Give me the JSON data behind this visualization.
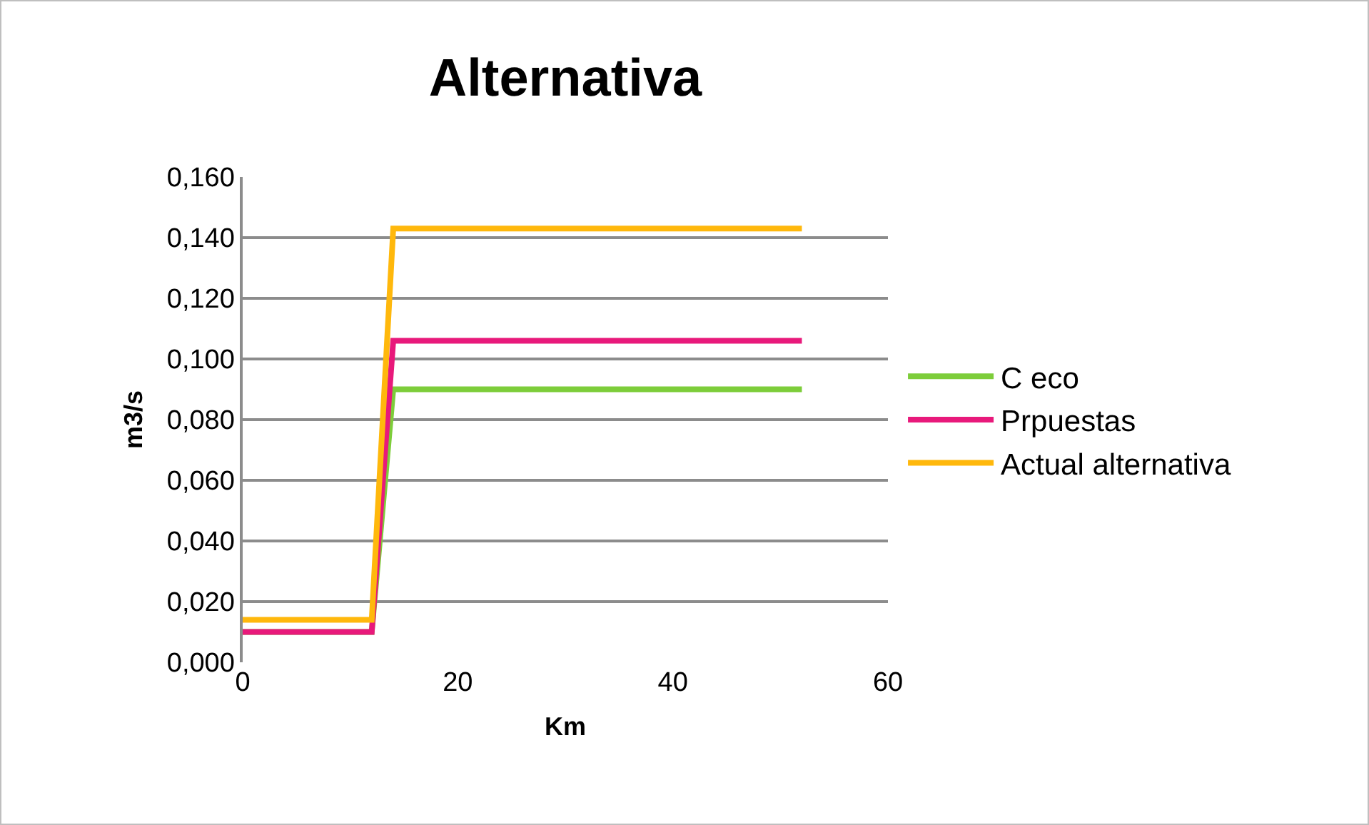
{
  "chart_data": {
    "type": "line",
    "title": "Alternativa",
    "xlabel": "Km",
    "ylabel": "m3/s",
    "xlim": [
      0,
      60
    ],
    "xticks": [
      0,
      20,
      40,
      60
    ],
    "ylim": [
      0,
      0.16
    ],
    "yticks": [
      {
        "value": 0,
        "label": "0,000"
      },
      {
        "value": 0.02,
        "label": "0,020"
      },
      {
        "value": 0.04,
        "label": "0,040"
      },
      {
        "value": 0.06,
        "label": "0,060"
      },
      {
        "value": 0.08,
        "label": "0,080"
      },
      {
        "value": 0.1,
        "label": "0,100"
      },
      {
        "value": 0.12,
        "label": "0,120"
      },
      {
        "value": 0.14,
        "label": "0,140"
      },
      {
        "value": 0.16,
        "label": "0,160"
      }
    ],
    "grid": "y",
    "legend": "right",
    "marker": "none",
    "line_style": "solid",
    "series": [
      {
        "name": "C eco",
        "color": "#7dcd3a",
        "x": [
          0,
          12,
          14,
          52
        ],
        "values": [
          0.01,
          0.01,
          0.09,
          0.09
        ]
      },
      {
        "name": "Prpuestas",
        "color": "#e8197b",
        "x": [
          0,
          12,
          14,
          52
        ],
        "values": [
          0.01,
          0.01,
          0.106,
          0.106
        ]
      },
      {
        "name": "Actual alternativa",
        "color": "#ffb80c",
        "x": [
          0,
          12,
          14,
          52
        ],
        "values": [
          0.014,
          0.014,
          0.143,
          0.143
        ]
      }
    ]
  }
}
